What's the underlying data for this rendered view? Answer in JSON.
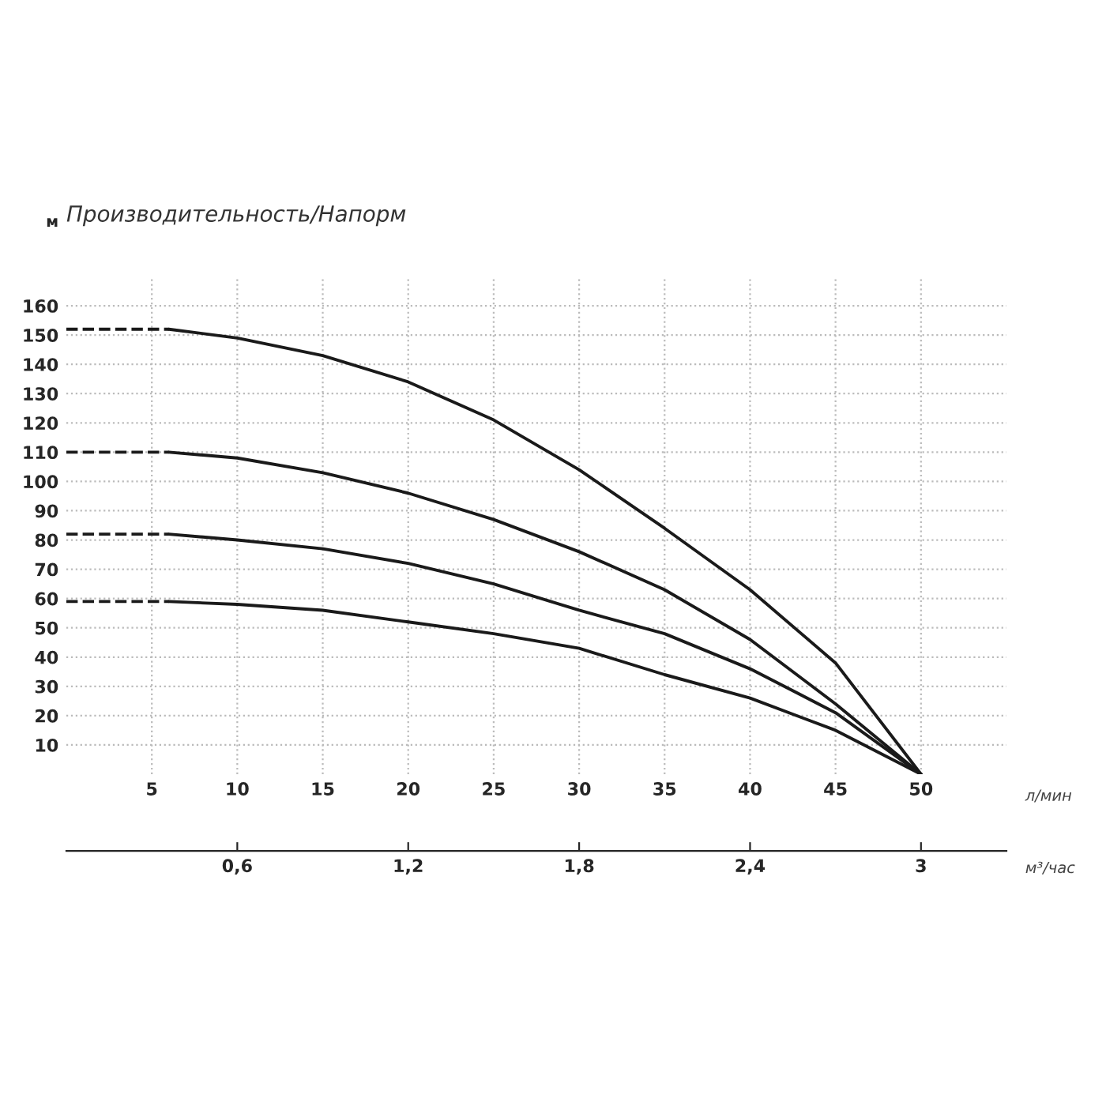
{
  "chart_data": {
    "type": "line",
    "title": "Производительность/Напорм",
    "ylabel": "м",
    "xlabel": "л/мин",
    "x2label": "м³/час",
    "xlim": [
      0,
      55
    ],
    "ylim": [
      0,
      170
    ],
    "xticks": [
      5,
      10,
      15,
      20,
      25,
      30,
      35,
      40,
      45,
      50
    ],
    "yticks": [
      10,
      20,
      30,
      40,
      50,
      60,
      70,
      80,
      90,
      100,
      110,
      120,
      130,
      140,
      150,
      160
    ],
    "x2lim": [
      0,
      3.3
    ],
    "x2ticks": [
      {
        "value": 0.6,
        "label": "0,6"
      },
      {
        "value": 1.2,
        "label": "1,2"
      },
      {
        "value": 1.8,
        "label": "1,8"
      },
      {
        "value": 2.4,
        "label": "2,4"
      },
      {
        "value": 3,
        "label": "3"
      }
    ],
    "grid": true,
    "marker": "none",
    "series": [
      {
        "color": "#1a1a1a",
        "line_style": "dashed",
        "x": [
          0,
          6
        ],
        "values": [
          152,
          152
        ]
      },
      {
        "color": "#1a1a1a",
        "line_style": "solid",
        "x": [
          6,
          10,
          15,
          20,
          25,
          30,
          35,
          40,
          45,
          50
        ],
        "values": [
          152,
          149,
          143,
          134,
          121,
          104,
          84,
          63,
          38,
          0
        ]
      },
      {
        "color": "#1a1a1a",
        "line_style": "dashed",
        "x": [
          0,
          6
        ],
        "values": [
          110,
          110
        ]
      },
      {
        "color": "#1a1a1a",
        "line_style": "solid",
        "x": [
          6,
          10,
          15,
          20,
          25,
          30,
          35,
          40,
          45,
          50
        ],
        "values": [
          110,
          108,
          103,
          96,
          87,
          76,
          63,
          46,
          24,
          0
        ]
      },
      {
        "color": "#1a1a1a",
        "line_style": "dashed",
        "x": [
          0,
          6
        ],
        "values": [
          82,
          82
        ]
      },
      {
        "color": "#1a1a1a",
        "line_style": "solid",
        "x": [
          6,
          10,
          15,
          20,
          25,
          30,
          35,
          40,
          45,
          50
        ],
        "values": [
          82,
          80,
          77,
          72,
          65,
          56,
          48,
          36,
          21,
          0
        ]
      },
      {
        "color": "#1a1a1a",
        "line_style": "dashed",
        "x": [
          0,
          6
        ],
        "values": [
          59,
          59
        ]
      },
      {
        "color": "#1a1a1a",
        "line_style": "solid",
        "x": [
          6,
          10,
          15,
          20,
          25,
          30,
          35,
          40,
          45,
          50
        ],
        "values": [
          59,
          58,
          56,
          52,
          48,
          43,
          34,
          26,
          15,
          0
        ]
      }
    ]
  }
}
